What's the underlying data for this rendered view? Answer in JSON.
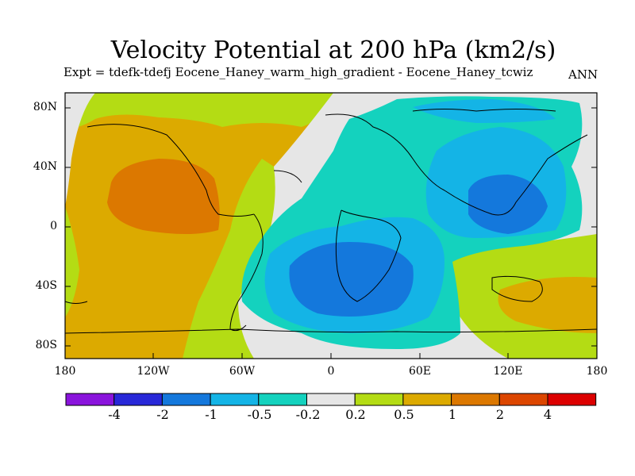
{
  "title": "Velocity Potential at 200 hPa (km2/s)",
  "subtitle": "Expt = tdefk-tdefj Eocene_Haney_warm_high_gradient - Eocene_Haney_tcwiz",
  "season": "ANN",
  "lat_labels": [
    "80N",
    "40N",
    "0",
    "40S",
    "80S"
  ],
  "lon_labels": [
    "180",
    "120W",
    "60W",
    "0",
    "60E",
    "120E",
    "180"
  ],
  "colorbar": {
    "labels": [
      "-4",
      "-2",
      "-1",
      "-0.5",
      "-0.2",
      "0.2",
      "0.5",
      "1",
      "2",
      "4"
    ],
    "colors": [
      "#8a14dc",
      "#2828d8",
      "#1478dc",
      "#14b4e6",
      "#14d2be",
      "#e6e6e6",
      "#b4dc14",
      "#dcaa00",
      "#dc7800",
      "#dc4600",
      "#dc0000"
    ]
  },
  "fields": {
    "colors": {
      "neg_1": "#1478dc",
      "neg_05": "#14b4e6",
      "neg_02": "#14d2be",
      "neutral": "#e6e6e6",
      "pos_02": "#b4dc14",
      "pos_05": "#dcaa00",
      "pos_1": "#dc7800"
    }
  }
}
